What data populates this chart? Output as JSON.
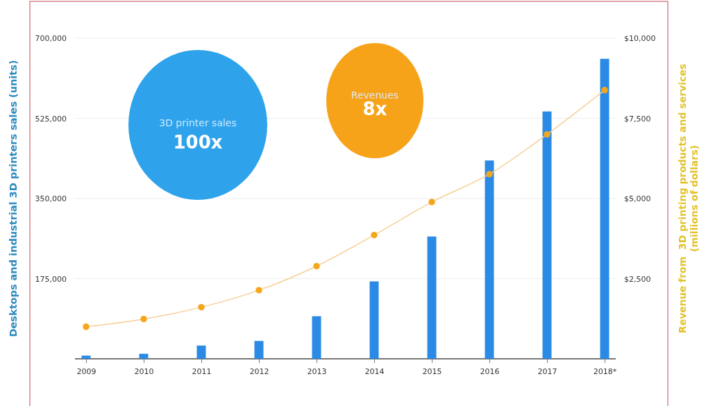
{
  "chart_data": {
    "type": "bar",
    "ylabel": "Desktops and industrial 3D printers sales (units)",
    "y2label": "Revenue from  3D printing products and services\n(millions of dollars)",
    "categories": [
      "2009",
      "2010",
      "2011",
      "2012",
      "2013",
      "2014",
      "2015",
      "2016",
      "2017",
      "2018*"
    ],
    "series": [
      {
        "color": "#2a8ae6",
        "values": [
          7000,
          11000,
          29000,
          39000,
          93000,
          169000,
          267000,
          433000,
          540000,
          655000
        ]
      },
      {
        "type": "line",
        "axis": "y2",
        "color": "#f4a71d",
        "marker": "circle",
        "line_style": "solid",
        "values": [
          1000,
          1240,
          1610,
          2140,
          2890,
          3860,
          4890,
          5760,
          7000,
          8380
        ]
      }
    ],
    "ylim": [
      0,
      700000
    ],
    "yticks": [
      {
        "value": 0,
        "label": null
      },
      {
        "value": 175000,
        "label": "175,000"
      },
      {
        "value": 350000,
        "label": "350,000"
      },
      {
        "value": 525000,
        "label": "525,000"
      },
      {
        "value": 700000,
        "label": "700,000"
      }
    ],
    "y2lim": [
      0,
      10000
    ],
    "y2ticks": [
      {
        "value": 0,
        "label": null
      },
      {
        "value": 2500,
        "label": "$2,500"
      },
      {
        "value": 5000,
        "label": "$5,000"
      },
      {
        "value": 7500,
        "label": "$7,500"
      },
      {
        "value": 10000,
        "label": "$10,000"
      }
    ],
    "grid": "y",
    "annotations": [
      "3D printer sales",
      "100x",
      "Revenues",
      "8x"
    ]
  }
}
